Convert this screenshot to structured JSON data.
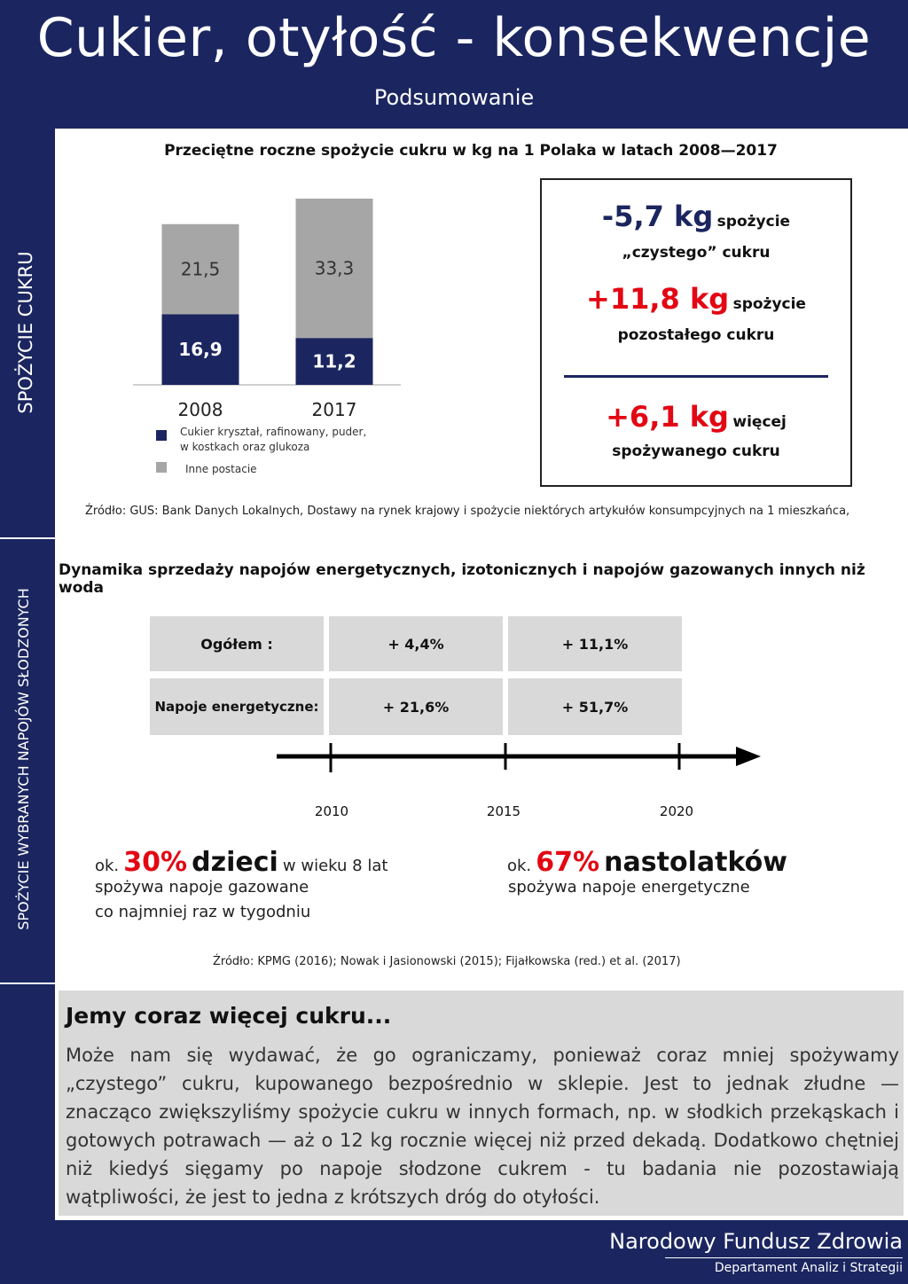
{
  "header": {
    "title": "Cukier, otyłość - konsekwencje",
    "subtitle": "Podsumowanie"
  },
  "section1": {
    "side_label": "SPOŻYCIE CUKRU",
    "chart_title": "Przeciętne roczne spożycie cukru w kg na 1 Polaka w latach 2008—2017",
    "legend": [
      {
        "label_line1": "Cukier kryształ, rafinowany, puder,",
        "label_line2": "w kostkach oraz glukoza",
        "color": "#1b2660"
      },
      {
        "label_line1": "Inne postacie",
        "label_line2": "",
        "color": "#a6a6a6"
      }
    ],
    "box": {
      "line1_value": "-5,7 kg",
      "line1_text": "spożycie",
      "line2_text": "„czystego” cukru",
      "line3_value": "+11,8 kg",
      "line3_text": "spożycie",
      "line4_text": "pozostałego cukru",
      "line5_value": "+6,1 kg",
      "line5_text": "więcej",
      "line6_text": "spożywanego cukru"
    },
    "source": "Źródło: GUS: Bank Danych Lokalnych, Dostawy na rynek krajowy i spożycie niektórych artykułów konsumpcyjnych na 1 mieszkańca,"
  },
  "chart_data": {
    "type": "bar",
    "stacked": true,
    "categories": [
      "2008",
      "2017"
    ],
    "series": [
      {
        "name": "Cukier kryształ, rafinowany, puder, w kostkach oraz glukoza",
        "values": [
          16.9,
          11.2
        ],
        "labels": [
          "16,9",
          "11,2"
        ],
        "color": "#1b2660"
      },
      {
        "name": "Inne postacie",
        "values": [
          21.5,
          33.3
        ],
        "labels": [
          "21,5",
          "33,3"
        ],
        "color": "#a6a6a6"
      }
    ]
  },
  "section2": {
    "side_label": "SPOŻYCIE  WYBRANYCH NAPOJÓW SŁODZONYCH",
    "title": "Dynamika sprzedaży napojów energetycznych, izotonicznych i napojów gazowanych innych niż woda",
    "table": {
      "rows": [
        {
          "label": "Ogółem :",
          "v1": "+ 4,4%",
          "v2": "+ 11,1%"
        },
        {
          "label": "Napoje energetyczne:",
          "v1": "+ 21,6%",
          "v2": "+ 51,7%"
        }
      ]
    },
    "timeline_years": [
      "2010",
      "2015",
      "2020"
    ],
    "stat1": {
      "prefix": "ok.",
      "pct": "30%",
      "subject": "dzieci",
      "suffix": "w wieku 8 lat",
      "line2": "spożywa napoje gazowane",
      "line3": "co najmniej raz w tygodniu"
    },
    "stat2": {
      "prefix": "ok.",
      "pct": "67%",
      "subject": "nastolatków",
      "line2": "spożywa napoje energetyczne"
    },
    "source": "Źródło: KPMG (2016); Nowak i Jasionowski (2015); Fijałkowska (red.) et al. (2017)"
  },
  "summary": {
    "title": "Jemy coraz więcej cukru...",
    "body": "Może nam się wydawać, że go ograniczamy, ponieważ coraz mniej spożywamy „czystego” cukru, kupowanego bezpośrednio w sklepie. Jest to jednak złudne — znacząco zwiększyliśmy spożycie cukru w innych formach, np. w słodkich przekąskach i gotowych potrawach — aż o 12 kg rocznie więcej niż przed dekadą. Dodatkowo chętniej niż kiedyś sięgamy po napoje słodzone cukrem - tu badania nie pozostawiają wątpliwości, że jest to jedna z krótszych dróg do otyłości."
  },
  "footer": {
    "org": "Narodowy Fundusz Zdrowia",
    "dept": "Departament Analiz i Strategii"
  }
}
